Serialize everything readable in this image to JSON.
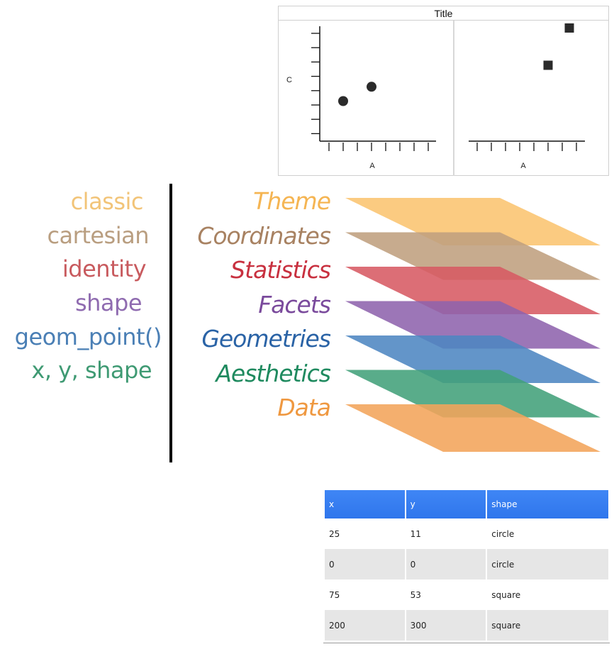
{
  "plot": {
    "title": "Title",
    "y_label": "C",
    "x_label_left": "A",
    "x_label_right": "A"
  },
  "chart_data": {
    "type": "scatter",
    "title": "Title",
    "facets": [
      {
        "name": "circle",
        "xlabel": "A",
        "ylabel": "C",
        "marker": "circle",
        "points": [
          {
            "x": 1.5,
            "y": 2.5
          },
          {
            "x": 3.5,
            "y": 3.5
          }
        ],
        "x_ticks": 8,
        "y_ticks": 8
      },
      {
        "name": "square",
        "xlabel": "A",
        "ylabel": "",
        "marker": "square",
        "points": [
          {
            "x": 5.5,
            "y": 5.0
          },
          {
            "x": 7.0,
            "y": 7.6
          }
        ],
        "x_ticks": 8
      }
    ],
    "grid": false
  },
  "diagram": {
    "left_labels": [
      {
        "text": "classic",
        "color": "#f2c478"
      },
      {
        "text": "cartesian",
        "color": "#b99e80"
      },
      {
        "text": "identity",
        "color": "#c85a5e"
      },
      {
        "text": "shape",
        "color": "#8f6bb0"
      },
      {
        "text": "geom_point()",
        "color": "#4a7fb5"
      },
      {
        "text": "x, y, shape",
        "color": "#3f9a73"
      }
    ],
    "layers": [
      {
        "name": "Theme",
        "color": "#fbc470",
        "text_color": "#f5b553"
      },
      {
        "name": "Coordinates",
        "color": "#bf9f7e",
        "text_color": "#a88262"
      },
      {
        "name": "Statistics",
        "color": "#d75a63",
        "text_color": "#c8303f"
      },
      {
        "name": "Facets",
        "color": "#8e63ad",
        "text_color": "#7a4a9c"
      },
      {
        "name": "Geometries",
        "color": "#4d86c2",
        "text_color": "#2a63a6"
      },
      {
        "name": "Aesthetics",
        "color": "#42a07a",
        "text_color": "#1f8a5f"
      },
      {
        "name": "Data",
        "color": "#f2a45a",
        "text_color": "#ef9840"
      }
    ]
  },
  "table": {
    "columns": [
      "x",
      "y",
      "shape"
    ],
    "rows": [
      [
        "25",
        "11",
        "circle"
      ],
      [
        "0",
        "0",
        "circle"
      ],
      [
        "75",
        "53",
        "square"
      ],
      [
        "200",
        "300",
        "square"
      ]
    ],
    "header_color": "#3a82f2"
  }
}
